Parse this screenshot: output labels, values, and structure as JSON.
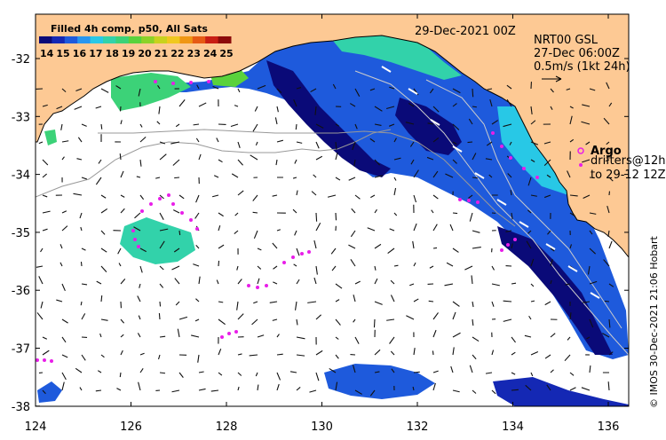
{
  "map": {
    "date_label": "29-Dec-2021 00Z",
    "product_lines": [
      "NRT00 GSL",
      "27-Dec 06:00Z",
      "0.5m/s (1kt 24h)"
    ],
    "colorbar": {
      "title": "Filled 4h comp, p50, All Sats",
      "tick_labels": [
        "14",
        "15",
        "16",
        "17",
        "18",
        "19",
        "20",
        "21",
        "22",
        "23",
        "24",
        "25"
      ],
      "colors": [
        "#0a0a78",
        "#1428b4",
        "#1e5adc",
        "#2896f0",
        "#28c8e6",
        "#32d2aa",
        "#3cd278",
        "#5ad23c",
        "#8cd228",
        "#c8d21e",
        "#f0c81e",
        "#f09614",
        "#e65a14",
        "#c81e14",
        "#8c0a0a"
      ]
    },
    "legend": {
      "argo_label": "Argo",
      "drifters_line1": "drifters@12h",
      "drifters_line2": "to 29-12 12Z"
    },
    "credit": "© IMOS 30-Dec-2021 21:06 Hobart",
    "lat_ticks": [
      "-32",
      "-33",
      "-34",
      "-35",
      "-36",
      "-37",
      "-38"
    ],
    "lon_ticks": [
      "124",
      "126",
      "128",
      "130",
      "132",
      "134",
      "136"
    ],
    "colors": {
      "land": "#fdc994",
      "argo": "#e81ee8",
      "drifter": "#e81ee8"
    }
  }
}
